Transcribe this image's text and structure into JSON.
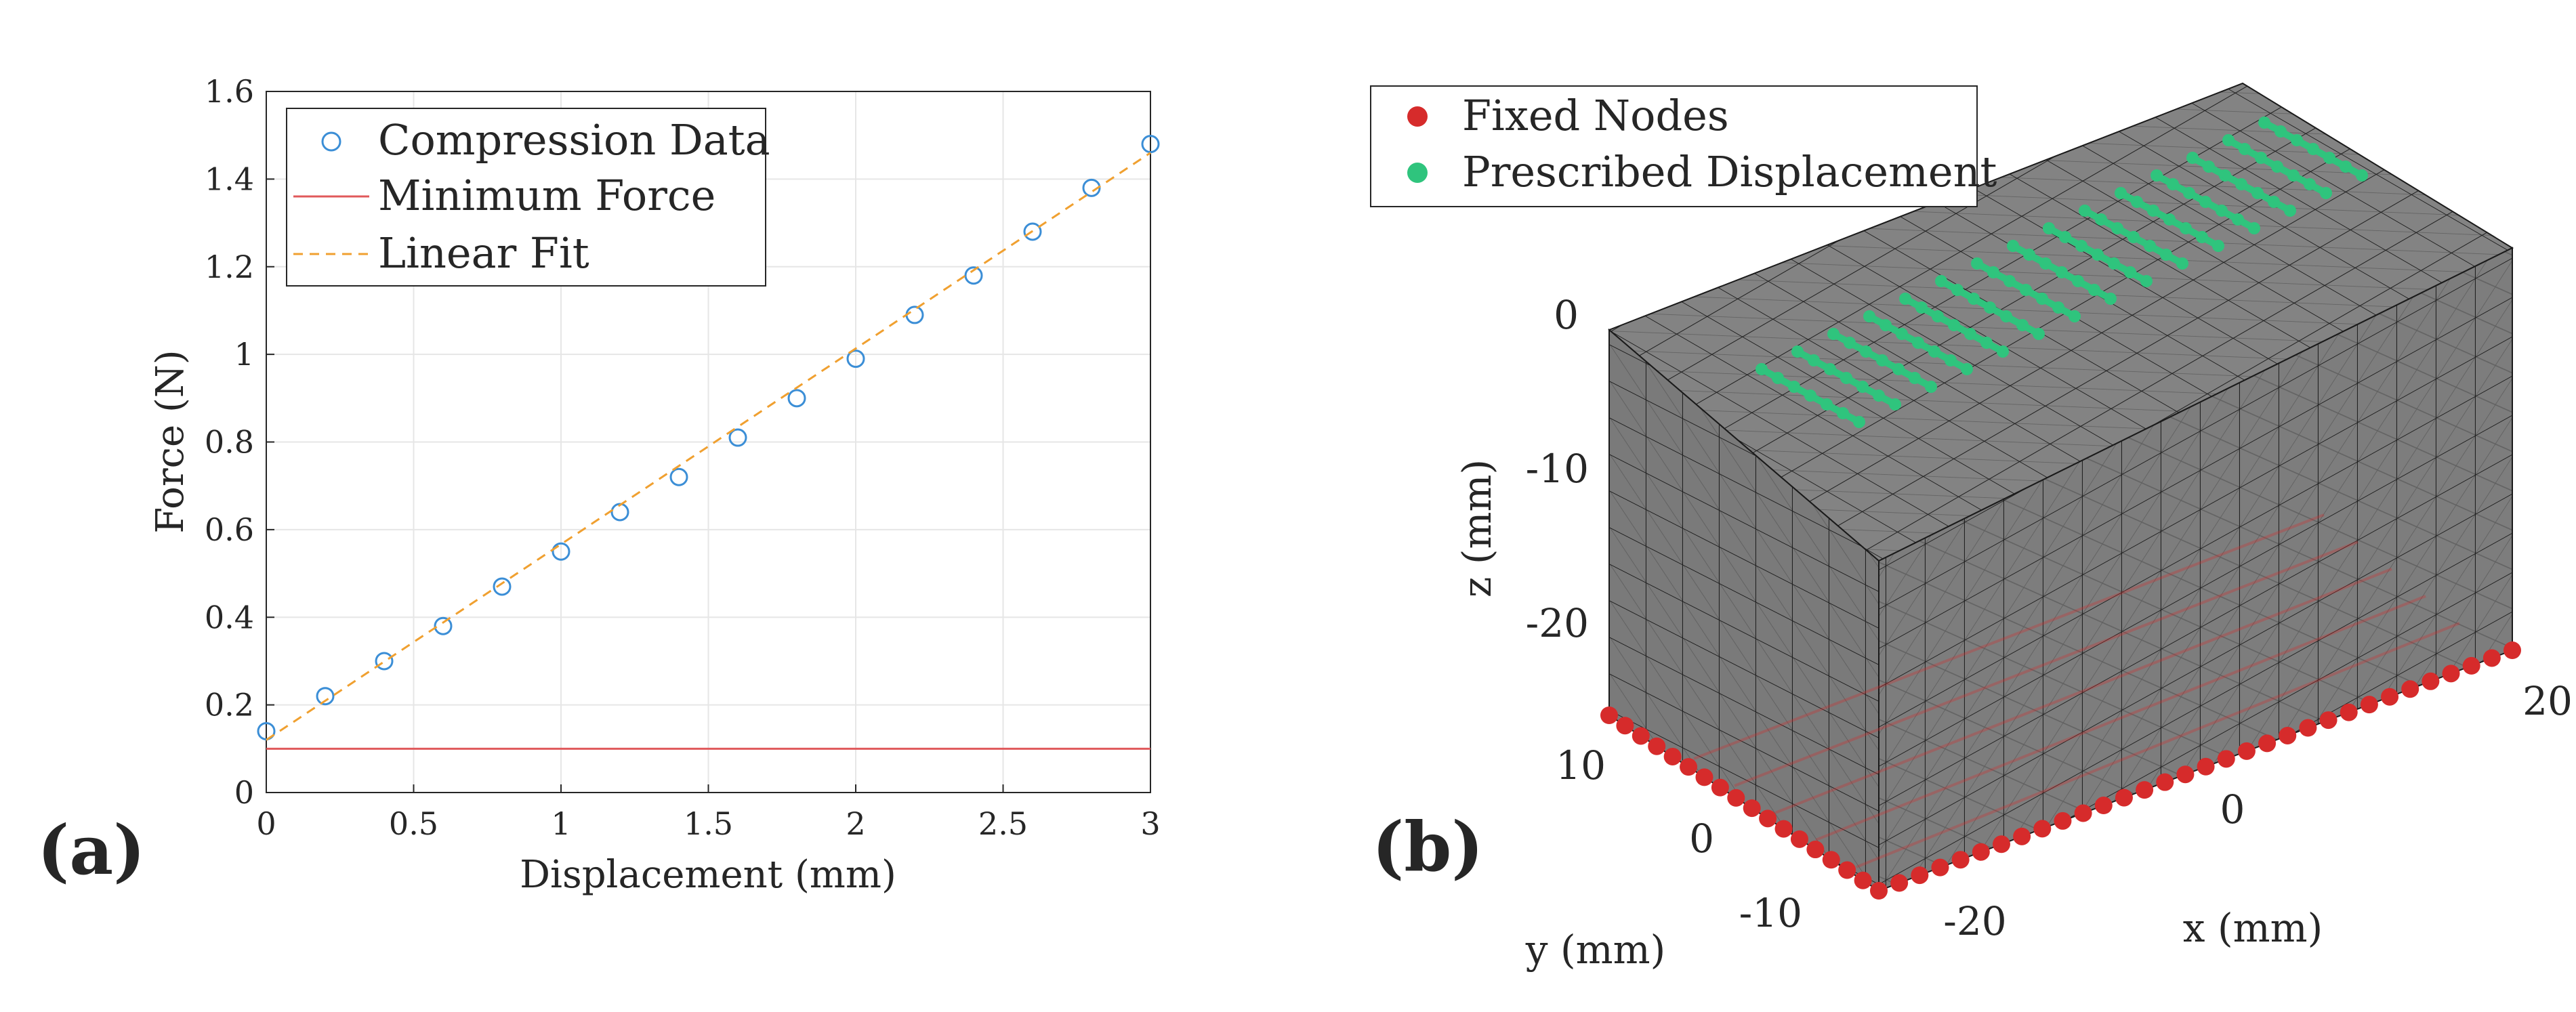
{
  "chart_data": [
    {
      "type": "scatter",
      "panel_label": "(a)",
      "xlabel": "Displacement (mm)",
      "ylabel": "Force (N)",
      "xlim": [
        0,
        3
      ],
      "ylim": [
        0,
        1.6
      ],
      "x_ticks": [
        "0",
        "0.5",
        "1",
        "1.5",
        "2",
        "2.5",
        "3"
      ],
      "y_ticks": [
        "0",
        "0.2",
        "0.4",
        "0.6",
        "0.8",
        "1",
        "1.2",
        "1.4",
        "1.6"
      ],
      "grid": true,
      "legend_position": "top-left",
      "legend": [
        "Compression Data",
        "Minimum Force",
        "Linear Fit"
      ],
      "series": [
        {
          "name": "Compression Data",
          "marker": "open-circle",
          "color": "#3b8ed6",
          "x": [
            0,
            0.2,
            0.4,
            0.6,
            0.8,
            1.0,
            1.2,
            1.4,
            1.6,
            1.8,
            2.0,
            2.2,
            2.4,
            2.6,
            2.8,
            3.0
          ],
          "y": [
            0.14,
            0.22,
            0.3,
            0.38,
            0.47,
            0.55,
            0.64,
            0.72,
            0.81,
            0.9,
            0.99,
            1.09,
            1.18,
            1.28,
            1.38,
            1.48
          ]
        },
        {
          "name": "Minimum Force",
          "style": "solid",
          "color": "#e0595b",
          "x": [
            0,
            3
          ],
          "y": [
            0.1,
            0.1
          ]
        },
        {
          "name": "Linear Fit",
          "style": "dashed",
          "color": "#f0a030",
          "x": [
            0,
            3
          ],
          "y": [
            0.12,
            1.46
          ]
        }
      ]
    },
    {
      "type": "3d-mesh",
      "panel_label": "(b)",
      "xlabel": "x (mm)",
      "ylabel": "y (mm)",
      "zlabel": "z (mm)",
      "x_ticks": [
        "-20",
        "0",
        "20"
      ],
      "y_ticks": [
        "-10",
        "0",
        "10"
      ],
      "z_ticks": [
        "-20",
        "-10",
        "0"
      ],
      "legend_position": "top-left",
      "legend": [
        "Fixed Nodes",
        "Prescribed Displacement"
      ],
      "mesh_color": "#7d7d7d",
      "fixed_color": "#d62b2b",
      "prescribed_color": "#2fc47d"
    }
  ]
}
